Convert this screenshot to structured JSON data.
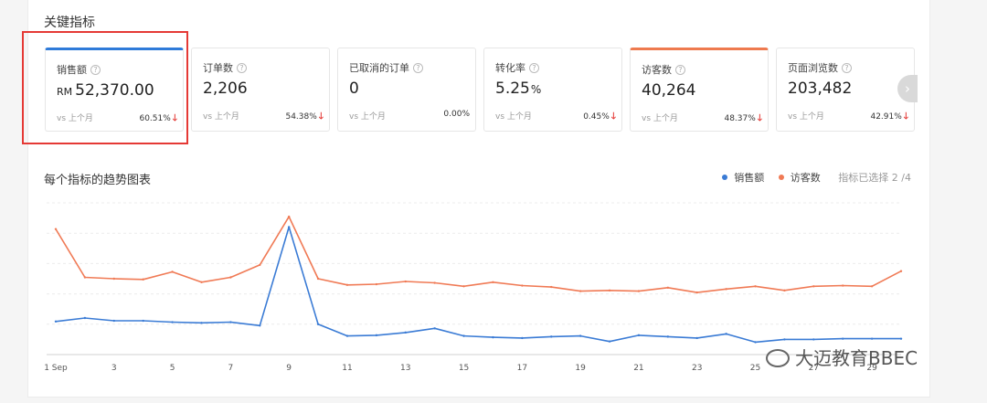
{
  "section_title": "关键指标",
  "cards": [
    {
      "label": "销售额",
      "currency": "RM",
      "value": "52,370.00",
      "unit": "",
      "vs": "vs 上个月",
      "pct": "60.51%",
      "down": true
    },
    {
      "label": "订单数",
      "currency": "",
      "value": "2,206",
      "unit": "",
      "vs": "vs 上个月",
      "pct": "54.38%",
      "down": true
    },
    {
      "label": "已取消的订单",
      "currency": "",
      "value": "0",
      "unit": "",
      "vs": "vs 上个月",
      "pct": "0.00%",
      "down": false
    },
    {
      "label": "转化率",
      "currency": "",
      "value": "5.25",
      "unit": "%",
      "vs": "vs 上个月",
      "pct": "0.45%",
      "down": true
    },
    {
      "label": "访客数",
      "currency": "",
      "value": "40,264",
      "unit": "",
      "vs": "vs 上个月",
      "pct": "48.37%",
      "down": true
    },
    {
      "label": "页面浏览数",
      "currency": "",
      "value": "203,482",
      "unit": "",
      "vs": "vs 上个月",
      "pct": "42.91%",
      "down": true
    }
  ],
  "question_mark": "?",
  "down_arrow": "🡓",
  "next_icon": "›",
  "chart_title": "每个指标的趋势图表",
  "legend_selected": "指标已选择 2 /4",
  "watermark": "大迈教育BBEC",
  "colors": {
    "blue": "#3a7bd5",
    "orange": "#f07a55",
    "alert": "#e53935"
  },
  "chart_data": {
    "type": "line",
    "x": [
      "1 Sep",
      "2",
      "3",
      "4",
      "5",
      "6",
      "7",
      "8",
      "9",
      "10",
      "11",
      "12",
      "13",
      "14",
      "15",
      "16",
      "17",
      "18",
      "19",
      "20",
      "21",
      "22",
      "23",
      "24",
      "25",
      "26",
      "27",
      "28",
      "29",
      "30"
    ],
    "x_tick_labels": [
      "1 Sep",
      "3",
      "5",
      "7",
      "9",
      "11",
      "13",
      "15",
      "17",
      "19",
      "21",
      "23",
      "25",
      "27",
      "29"
    ],
    "series": [
      {
        "name": "销售额",
        "color": "#3a7bd5",
        "values": [
          48,
          53,
          49,
          49,
          47,
          46,
          47,
          42,
          185,
          44,
          27,
          28,
          32,
          38,
          27,
          25,
          24,
          26,
          27,
          19,
          28,
          26,
          24,
          30,
          18,
          22,
          22,
          23,
          23,
          23
        ]
      },
      {
        "name": "访客数",
        "color": "#f07a55",
        "values": [
          182,
          112,
          110,
          109,
          120,
          105,
          112,
          130,
          200,
          110,
          101,
          102,
          106,
          104,
          99,
          105,
          100,
          98,
          92,
          93,
          92,
          97,
          90,
          95,
          99,
          93,
          99,
          100,
          99,
          121
        ]
      }
    ],
    "ylim": [
      0,
      220
    ],
    "grid": true
  }
}
